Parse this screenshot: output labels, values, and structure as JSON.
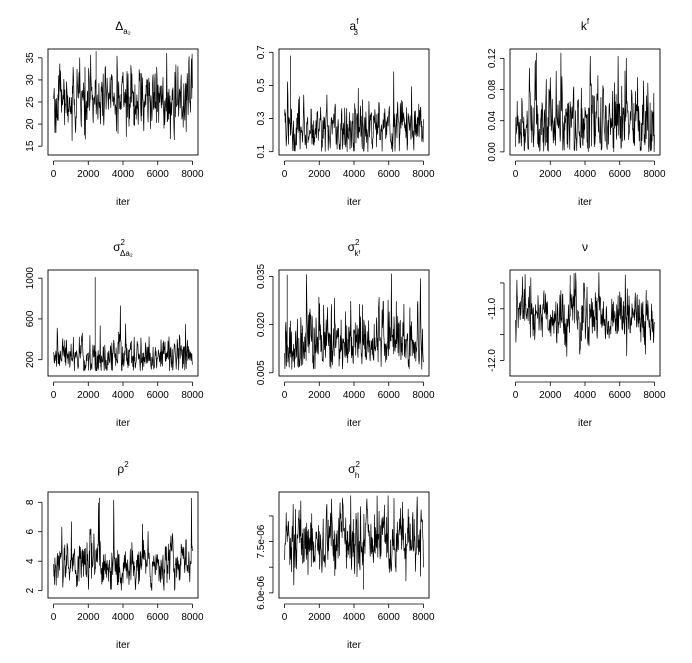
{
  "chart_data": [
    {
      "type": "line",
      "title": "Δ",
      "title_sub": "a₂",
      "title_sup": "",
      "xlabel": "iter",
      "ylabel": "",
      "xlim": [
        0,
        8000
      ],
      "xticks": [
        "0",
        "2000",
        "4000",
        "6000",
        "8000"
      ],
      "ylim": [
        13,
        37
      ],
      "yticks": [
        15,
        20,
        25,
        30,
        35
      ],
      "ytick_labels": [
        "15",
        "20",
        "25",
        "30",
        "35"
      ],
      "series": [
        {
          "mean": 25,
          "spread": 3.2,
          "min": 14,
          "max": 36.5,
          "spike_at": 2450,
          "spike_value": 36.5
        }
      ]
    },
    {
      "type": "line",
      "title": "a",
      "title_sub": "3",
      "title_sup": "f",
      "xlabel": "iter",
      "ylabel": "",
      "xlim": [
        0,
        8000
      ],
      "xticks": [
        "0",
        "2000",
        "4000",
        "6000",
        "8000"
      ],
      "ylim": [
        0.08,
        0.72
      ],
      "yticks": [
        0.1,
        0.3,
        0.5,
        0.7
      ],
      "ytick_labels": [
        "0.1",
        "0.3",
        "0.5",
        "0.7"
      ],
      "series": [
        {
          "mean": 0.24,
          "spread": 0.08,
          "min": 0.1,
          "max": 0.68,
          "spike_at": 350,
          "spike_value": 0.68
        }
      ]
    },
    {
      "type": "line",
      "title": "k",
      "title_sub": "",
      "title_sup": "f",
      "xlabel": "iter",
      "ylabel": "",
      "xlim": [
        0,
        8000
      ],
      "xticks": [
        "0",
        "2000",
        "4000",
        "6000",
        "8000"
      ],
      "ylim": [
        -0.004,
        0.132
      ],
      "yticks": [
        0,
        0.04,
        0.08,
        0.12
      ],
      "ytick_labels": [
        "0.00",
        "0.04",
        "0.08",
        "0.12"
      ],
      "series": [
        {
          "mean": 0.035,
          "spread": 0.025,
          "min": 0.0,
          "max": 0.128,
          "spike_at": 1200,
          "spike_value": 0.127
        }
      ]
    },
    {
      "type": "line",
      "title": "σ",
      "title_sub": "Δa₂",
      "title_sup": "2",
      "xlabel": "iter",
      "ylabel": "",
      "xlim": [
        0,
        8000
      ],
      "xticks": [
        "0",
        "2000",
        "4000",
        "6000",
        "8000"
      ],
      "ylim": [
        40,
        1080
      ],
      "yticks": [
        200,
        600,
        1000
      ],
      "ytick_labels": [
        "200",
        "600",
        "1000"
      ],
      "series": [
        {
          "mean": 230,
          "spread": 80,
          "min": 90,
          "max": 1010,
          "spike_at": 2400,
          "spike_value": 1010
        }
      ]
    },
    {
      "type": "line",
      "title": "σ",
      "title_sub": "kᶠ",
      "title_sup": "2",
      "xlabel": "iter",
      "ylabel": "",
      "xlim": [
        0,
        8000
      ],
      "xticks": [
        "0",
        "2000",
        "4000",
        "6000",
        "8000"
      ],
      "ylim": [
        0.004,
        0.037
      ],
      "yticks": [
        0.005,
        0.02,
        0.035
      ],
      "ytick_labels": [
        "0.005",
        "0.020",
        "0.035"
      ],
      "series": [
        {
          "mean": 0.0145,
          "spread": 0.0045,
          "min": 0.006,
          "max": 0.036,
          "spike_at": 150,
          "spike_value": 0.0355
        }
      ]
    },
    {
      "type": "line",
      "title": "ν",
      "title_sub": "",
      "title_sup": "",
      "xlabel": "iter",
      "ylabel": "",
      "xlim": [
        0,
        8000
      ],
      "xticks": [
        "0",
        "2000",
        "4000",
        "6000",
        "8000"
      ],
      "ylim": [
        -12.3,
        -10.25
      ],
      "yticks": [
        -12.0,
        -11.0
      ],
      "ytick_labels": [
        "-12.0",
        "-11.0"
      ],
      "minor_yticks": [
        -11.5,
        -10.5
      ],
      "series": [
        {
          "mean": -11.15,
          "spread": 0.25,
          "min": -12.25,
          "max": -10.3,
          "spike_at": 3150,
          "spike_value": -10.35
        }
      ]
    },
    {
      "type": "line",
      "title": "ρ",
      "title_sub": "",
      "title_sup": "2",
      "xlabel": "iter",
      "ylabel": "",
      "xlim": [
        0,
        8000
      ],
      "xticks": [
        "0",
        "2000",
        "4000",
        "6000",
        "8000"
      ],
      "ylim": [
        1.5,
        8.7
      ],
      "yticks": [
        2,
        4,
        6,
        8
      ],
      "ytick_labels": [
        "2",
        "4",
        "6",
        "8"
      ],
      "series": [
        {
          "mean": 3.7,
          "spread": 0.75,
          "min": 2.0,
          "max": 8.3,
          "spike_at": 2650,
          "spike_value": 8.3
        }
      ]
    },
    {
      "type": "line",
      "title": "σ",
      "title_sub": "h",
      "title_sup": "2",
      "xlabel": "iter",
      "ylabel": "",
      "xlim": [
        0,
        8000
      ],
      "xticks": [
        "0",
        "2000",
        "4000",
        "6000",
        "8000"
      ],
      "ylim": [
        5.85e-06,
        8.95e-06
      ],
      "yticks": [
        6e-06,
        7.5e-06
      ],
      "ytick_labels": [
        "6.0e-06",
        "7.5e-06"
      ],
      "minor_yticks": [
        6.75e-06,
        8.25e-06
      ],
      "series": [
        {
          "mean": 7.55e-06,
          "spread": 4.2e-07,
          "min": 6.05e-06,
          "max": 8.85e-06,
          "spike_at": 4550,
          "spike_value": 6.1e-06
        }
      ]
    }
  ]
}
